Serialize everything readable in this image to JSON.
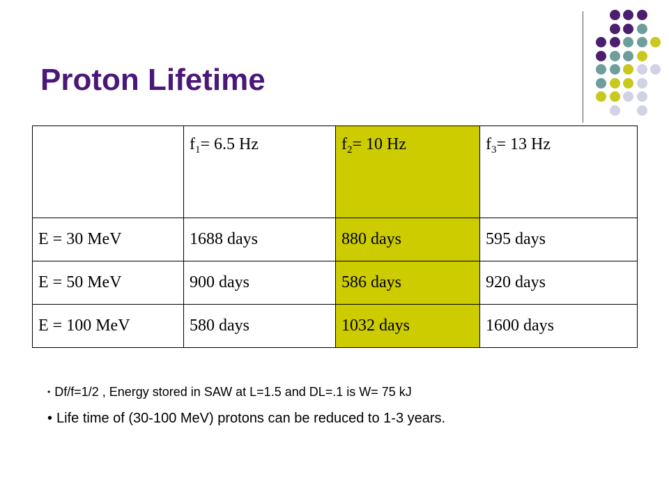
{
  "slide": {
    "title": "Proton Lifetime",
    "colors": {
      "title": "#4b1778",
      "highlight_column": "#cccc00",
      "dot_purple": "#4b1e6e",
      "dot_teal": "#6e9e9c",
      "dot_olive": "#c8c81e",
      "dot_lavender": "#d2d2e6"
    }
  },
  "table": {
    "columns": [
      {
        "pre": "",
        "sub": "",
        "post": ""
      },
      {
        "pre": "f",
        "sub": "1",
        "post": "= 6.5 Hz"
      },
      {
        "pre": "f",
        "sub": "2",
        "post": "= 10 Hz"
      },
      {
        "pre": "f",
        "sub": "3",
        "post": "= 13 Hz"
      }
    ],
    "rows": [
      {
        "label": "E = 30 MeV",
        "values": [
          "1688 days",
          "880 days",
          "595 days"
        ]
      },
      {
        "label": "E = 50 MeV",
        "values": [
          "900 days",
          "586 days",
          "920 days"
        ]
      },
      {
        "label": "E = 100 MeV",
        "values": [
          "580 days",
          "1032 days",
          "1600 days"
        ]
      }
    ]
  },
  "bullets": [
    "Df/f=1/2 , Energy stored in SAW at L=1.5  and DL=.1  is W= 75 kJ",
    "Life time of (30-100 MeV) protons can be reduced to 1-3 years."
  ],
  "bullet_mark": "•"
}
